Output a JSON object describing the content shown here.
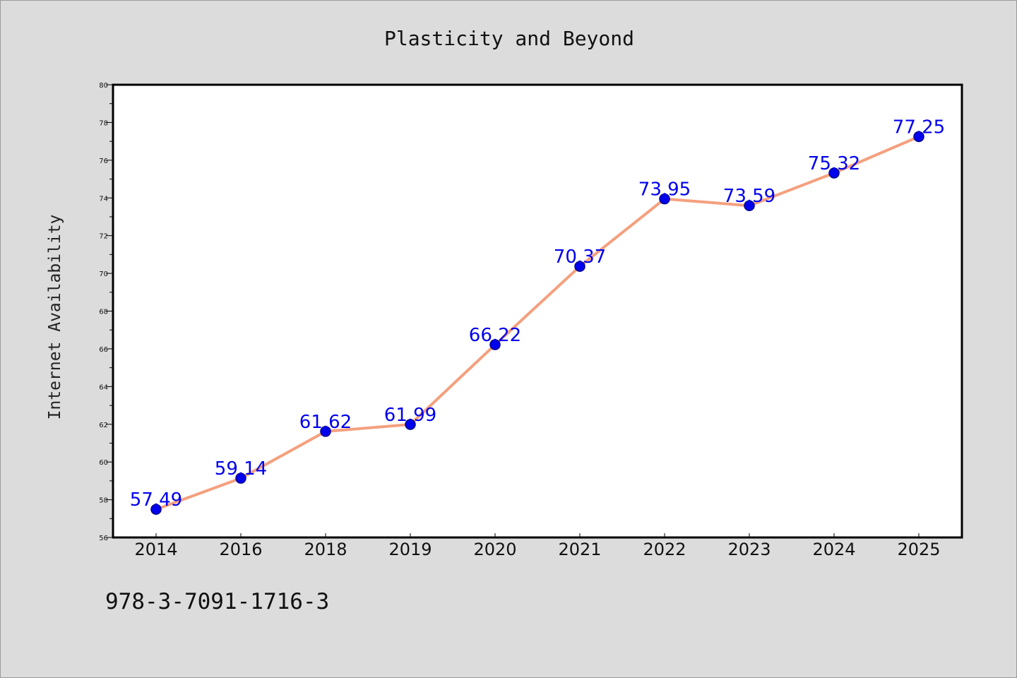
{
  "chart_data": {
    "type": "line",
    "title": "Plasticity and Beyond",
    "xlabel": "",
    "ylabel": "Internet Availability",
    "categories": [
      "2014",
      "2016",
      "2018",
      "2019",
      "2020",
      "2021",
      "2022",
      "2023",
      "2024",
      "2025"
    ],
    "series": [
      {
        "values": [
          57.49,
          59.14,
          61.62,
          61.99,
          66.22,
          70.37,
          73.95,
          73.59,
          75.32,
          77.25
        ],
        "line_color": "#f4a07e",
        "marker_color": "#0000ee",
        "label_color": "#0000ee"
      }
    ],
    "data_labels": [
      "57.49",
      "59.14",
      "61.62",
      "61.99",
      "66.22",
      "70.37",
      "73.95",
      "73.59",
      "75.32",
      "77.25"
    ],
    "ylim": [
      56,
      80
    ],
    "y_ticks": [
      "56",
      "58",
      "60",
      "62",
      "64",
      "66",
      "68",
      "70",
      "72",
      "74",
      "76",
      "78",
      "80"
    ],
    "grid": false,
    "legend": "none",
    "plot_background": "#ffffff",
    "page_background": "#dcdcdc"
  },
  "footer": {
    "code": "978-3-7091-1716-3"
  }
}
